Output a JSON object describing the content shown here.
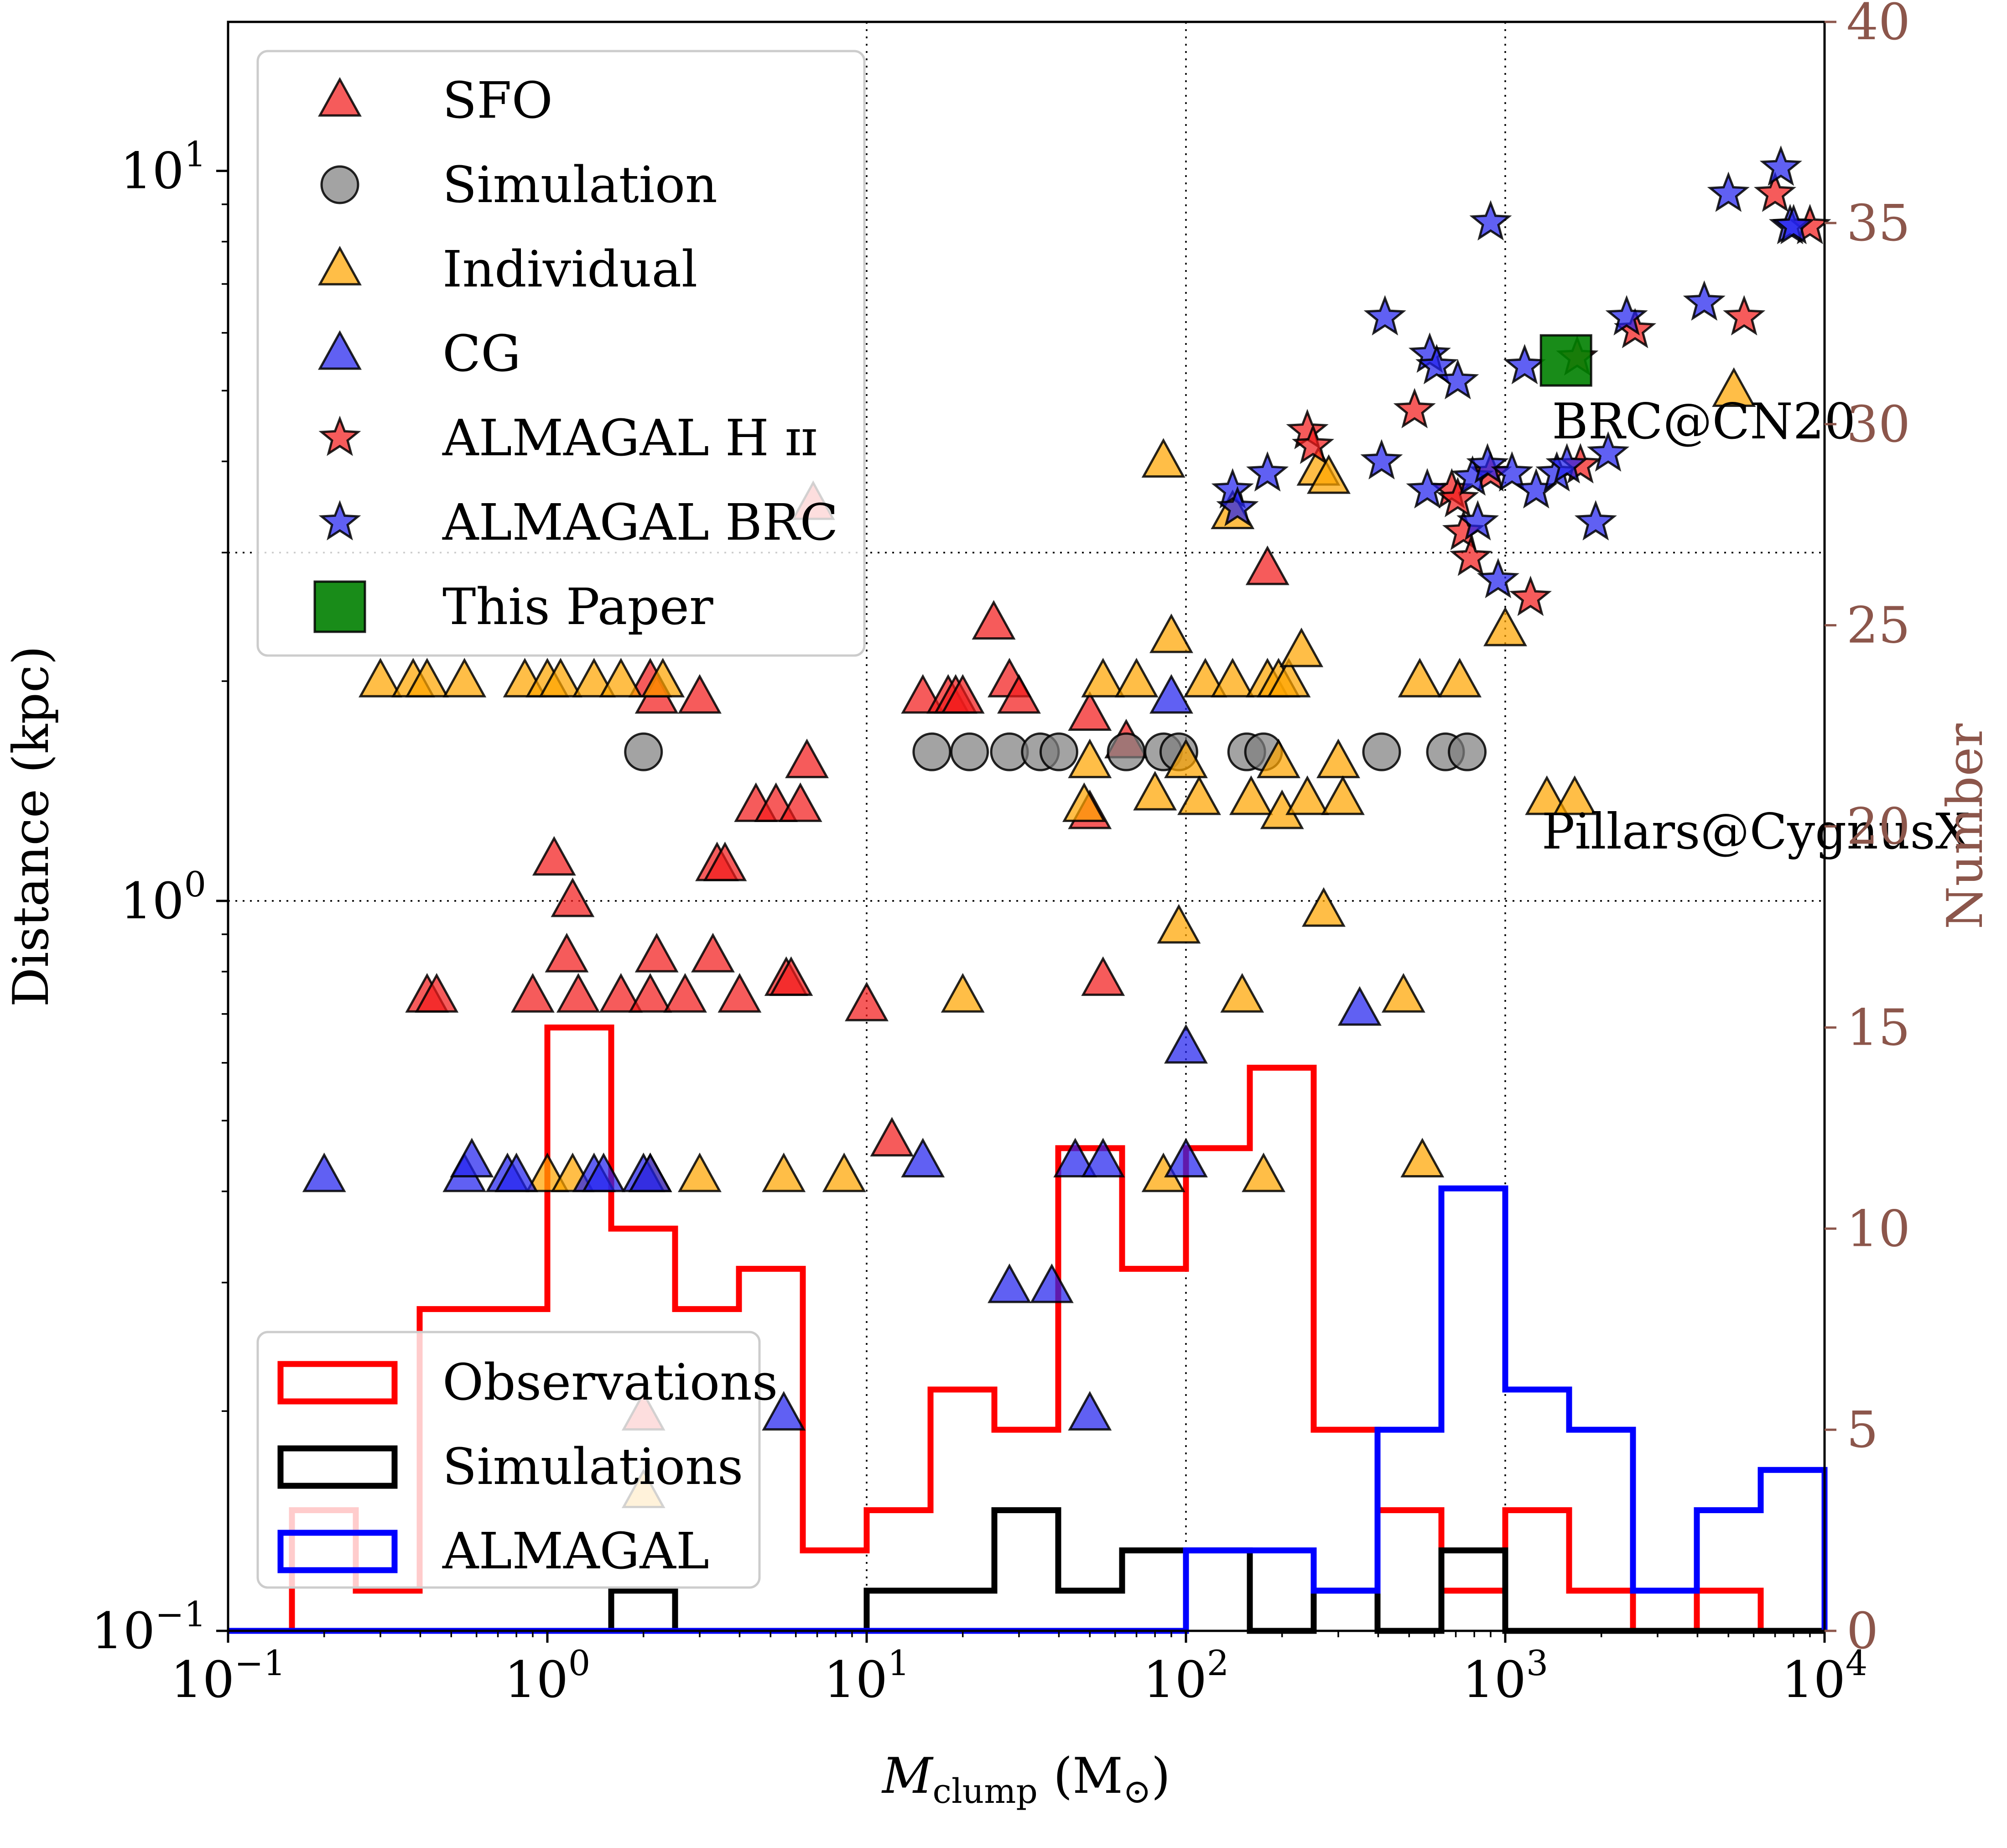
{
  "chart_data": {
    "type": "scatter",
    "title": "",
    "xlabel": {
      "main": "M",
      "sub": "clump",
      "unit": " (M",
      "unit_sym": "⊙",
      "unit_end": ")"
    },
    "ylabel": "Distance (kpc)",
    "y2label": "Number",
    "x_scale": "log",
    "y_scale": "log",
    "xlim": [
      0.1,
      10000
    ],
    "ylim": [
      0.1,
      16
    ],
    "y2lim": [
      0,
      40
    ],
    "grid": true,
    "x_ticks": [
      {
        "value": 0.1,
        "base": "10",
        "exp": "−1"
      },
      {
        "value": 1,
        "base": "10",
        "exp": "0"
      },
      {
        "value": 10,
        "base": "10",
        "exp": "1"
      },
      {
        "value": 100,
        "base": "10",
        "exp": "2"
      },
      {
        "value": 1000,
        "base": "10",
        "exp": "3"
      },
      {
        "value": 10000,
        "base": "10",
        "exp": "4"
      }
    ],
    "y_ticks": [
      {
        "value": 0.1,
        "base": "10",
        "exp": "−1"
      },
      {
        "value": 1,
        "base": "10",
        "exp": "0"
      },
      {
        "value": 10,
        "base": "10",
        "exp": "1"
      }
    ],
    "y2_ticks": [
      "0",
      "5",
      "10",
      "15",
      "20",
      "25",
      "30",
      "35",
      "40"
    ],
    "legend_scatter": [
      {
        "name": "SFO",
        "marker": "triangle",
        "color": "#f21c1c"
      },
      {
        "name": "Simulation",
        "marker": "circle",
        "color": "#808080"
      },
      {
        "name": "Individual",
        "marker": "triangle",
        "color": "#ffa500"
      },
      {
        "name": "CG",
        "marker": "triangle",
        "color": "#2222ee"
      },
      {
        "name": "ALMAGAL H ɪɪ",
        "marker": "star",
        "color": "#f21c1c"
      },
      {
        "name": "ALMAGAL BRC",
        "marker": "star",
        "color": "#2222ee"
      },
      {
        "name": "This Paper",
        "marker": "square",
        "color": "#008000"
      }
    ],
    "legend_hist": [
      {
        "name": "Observations",
        "color": "#ff0000"
      },
      {
        "name": "Simulations",
        "color": "#000000"
      },
      {
        "name": "ALMAGAL",
        "color": "#0000ff"
      }
    ],
    "annotations": [
      {
        "text": "BRC@CN20",
        "x": 1400,
        "y": 4.3
      },
      {
        "text": "Pillars@CygnusX",
        "x": 1300,
        "y": 1.18
      }
    ],
    "series": [
      {
        "name": "SFO",
        "points": [
          [
            0.42,
            0.74
          ],
          [
            0.45,
            0.74
          ],
          [
            0.9,
            0.74
          ],
          [
            1.05,
            1.14
          ],
          [
            1.15,
            0.84
          ],
          [
            1.2,
            1.0
          ],
          [
            1.25,
            0.74
          ],
          [
            1.7,
            0.74
          ],
          [
            2.1,
            0.74
          ],
          [
            2.2,
            0.84
          ],
          [
            2.7,
            0.74
          ],
          [
            3.3,
            0.84
          ],
          [
            4.0,
            0.74
          ],
          [
            3.4,
            1.12
          ],
          [
            3.6,
            1.12
          ],
          [
            4.5,
            1.35
          ],
          [
            5.2,
            1.35
          ],
          [
            6.2,
            1.35
          ],
          [
            6.5,
            1.55
          ],
          [
            5.6,
            0.78
          ],
          [
            5.8,
            0.78
          ],
          [
            2.2,
            1.9
          ],
          [
            2.1,
            2.0
          ],
          [
            3.0,
            1.9
          ],
          [
            10.0,
            0.72
          ],
          [
            12.0,
            0.47
          ],
          [
            15.0,
            1.9
          ],
          [
            18.0,
            1.9
          ],
          [
            19.0,
            1.9
          ],
          [
            20.0,
            1.9
          ],
          [
            25.0,
            2.4
          ],
          [
            28.0,
            2.0
          ],
          [
            30.0,
            1.9
          ],
          [
            50.0,
            1.8
          ],
          [
            55.0,
            0.78
          ],
          [
            50.0,
            1.32
          ],
          [
            65.0,
            1.65
          ],
          [
            180.0,
            2.85
          ],
          [
            6.8,
            3.5
          ],
          [
            2.0,
            0.198
          ]
        ]
      },
      {
        "name": "Simulation",
        "points": [
          [
            2.0,
            1.6
          ],
          [
            16.0,
            1.6
          ],
          [
            21.0,
            1.6
          ],
          [
            28.0,
            1.6
          ],
          [
            35.0,
            1.6
          ],
          [
            40.0,
            1.6
          ],
          [
            65.0,
            1.6
          ],
          [
            85.0,
            1.6
          ],
          [
            95.0,
            1.6
          ],
          [
            155.0,
            1.6
          ],
          [
            175.0,
            1.6
          ],
          [
            410.0,
            1.6
          ],
          [
            650.0,
            1.6
          ],
          [
            760.0,
            1.6
          ]
        ]
      },
      {
        "name": "Individual",
        "points": [
          [
            0.3,
            2.0
          ],
          [
            0.38,
            2.0
          ],
          [
            0.42,
            2.0
          ],
          [
            0.55,
            2.0
          ],
          [
            0.85,
            2.0
          ],
          [
            1.0,
            2.0
          ],
          [
            1.1,
            2.0
          ],
          [
            1.4,
            2.0
          ],
          [
            1.7,
            2.0
          ],
          [
            2.3,
            2.0
          ],
          [
            1.0,
            0.42
          ],
          [
            1.2,
            0.42
          ],
          [
            2.1,
            0.42
          ],
          [
            3.0,
            0.42
          ],
          [
            5.5,
            0.42
          ],
          [
            8.5,
            0.42
          ],
          [
            20.0,
            0.74
          ],
          [
            50.0,
            1.55
          ],
          [
            48.0,
            1.35
          ],
          [
            55.0,
            2.0
          ],
          [
            70.0,
            2.0
          ],
          [
            80.0,
            1.4
          ],
          [
            85.0,
            0.42
          ],
          [
            90.0,
            2.3
          ],
          [
            95.0,
            0.92
          ],
          [
            100.0,
            1.55
          ],
          [
            110.0,
            1.38
          ],
          [
            115.0,
            2.0
          ],
          [
            140.0,
            2.0
          ],
          [
            150.0,
            0.74
          ],
          [
            160.0,
            1.38
          ],
          [
            175.0,
            0.42
          ],
          [
            180.0,
            2.0
          ],
          [
            195.0,
            2.0
          ],
          [
            195.0,
            1.55
          ],
          [
            200.0,
            1.32
          ],
          [
            210.0,
            2.0
          ],
          [
            230.0,
            2.2
          ],
          [
            240.0,
            1.38
          ],
          [
            260.0,
            3.9
          ],
          [
            270.0,
            0.97
          ],
          [
            280.0,
            3.8
          ],
          [
            300.0,
            1.55
          ],
          [
            310.0,
            1.38
          ],
          [
            480.0,
            0.74
          ],
          [
            540.0,
            2.0
          ],
          [
            550.0,
            0.44
          ],
          [
            720.0,
            2.0
          ],
          [
            1000.0,
            2.35
          ],
          [
            1350.0,
            1.38
          ],
          [
            1650.0,
            1.38
          ],
          [
            5200.0,
            5.0
          ],
          [
            85.0,
            4.0
          ],
          [
            140.0,
            3.4
          ],
          [
            2.0,
            0.155
          ]
        ]
      },
      {
        "name": "CG",
        "points": [
          [
            0.2,
            0.42
          ],
          [
            0.55,
            0.42
          ],
          [
            0.58,
            0.44
          ],
          [
            0.75,
            0.42
          ],
          [
            0.8,
            0.42
          ],
          [
            1.4,
            0.42
          ],
          [
            1.5,
            0.42
          ],
          [
            2.0,
            0.42
          ],
          [
            2.1,
            0.42
          ],
          [
            15.0,
            0.44
          ],
          [
            28.0,
            0.296
          ],
          [
            38.0,
            0.296
          ],
          [
            45.0,
            0.44
          ],
          [
            55.0,
            0.44
          ],
          [
            50.0,
            0.198
          ],
          [
            5.5,
            0.198
          ],
          [
            90.0,
            1.9
          ],
          [
            100.0,
            0.63
          ],
          [
            100.0,
            0.44
          ],
          [
            350.0,
            0.71
          ]
        ]
      },
      {
        "name": "ALMAGAL H ɪɪ",
        "points": [
          [
            240.0,
            4.4
          ],
          [
            250.0,
            4.2
          ],
          [
            520.0,
            4.7
          ],
          [
            680.0,
            3.65
          ],
          [
            710.0,
            3.55
          ],
          [
            740.0,
            3.2
          ],
          [
            780.0,
            2.95
          ],
          [
            900.0,
            3.85
          ],
          [
            1200.0,
            2.6
          ],
          [
            1680.0,
            5.55
          ],
          [
            1720.0,
            3.95
          ],
          [
            2550.0,
            6.05
          ],
          [
            5600.0,
            6.3
          ],
          [
            7000.0,
            9.3
          ],
          [
            9000.0,
            8.4
          ]
        ]
      },
      {
        "name": "ALMAGAL BRC",
        "points": [
          [
            140.0,
            3.65
          ],
          [
            145.0,
            3.45
          ],
          [
            180.0,
            3.85
          ],
          [
            410.0,
            4.0
          ],
          [
            420.0,
            6.3
          ],
          [
            570.0,
            3.65
          ],
          [
            580.0,
            5.6
          ],
          [
            610.0,
            5.4
          ],
          [
            710.0,
            5.15
          ],
          [
            790.0,
            3.8
          ],
          [
            820.0,
            3.3
          ],
          [
            880.0,
            3.95
          ],
          [
            900.0,
            8.5
          ],
          [
            950.0,
            2.75
          ],
          [
            1050.0,
            3.85
          ],
          [
            1150.0,
            5.4
          ],
          [
            1250.0,
            3.65
          ],
          [
            1450.0,
            3.85
          ],
          [
            1560.0,
            3.95
          ],
          [
            1920.0,
            3.3
          ],
          [
            2100.0,
            4.1
          ],
          [
            2400.0,
            6.3
          ],
          [
            4200.0,
            6.6
          ],
          [
            5000.0,
            9.3
          ],
          [
            7300.0,
            10.1
          ],
          [
            7800.0,
            8.4
          ],
          [
            8000.0,
            8.4
          ]
        ]
      },
      {
        "name": "This Paper",
        "points": [
          [
            1550.0,
            5.5
          ]
        ]
      }
    ],
    "histograms": [
      {
        "name": "Observations",
        "edges": [
          0.1,
          0.1585,
          0.2512,
          0.3981,
          0.631,
          1.0,
          1.585,
          2.512,
          3.981,
          6.31,
          10.0,
          15.85,
          25.12,
          39.81,
          63.1,
          100.0,
          158.5,
          251.2,
          398.1,
          631.0,
          1000.0,
          1585.0,
          2512.0,
          3981.0,
          6310.0,
          10000.0
        ],
        "counts": [
          0,
          3,
          1,
          8,
          8,
          15,
          10,
          8,
          9,
          2,
          3,
          6,
          5,
          12,
          9,
          12,
          14,
          5,
          3,
          1,
          3,
          1,
          0,
          1,
          0
        ]
      },
      {
        "name": "Simulations",
        "edges": [
          0.1,
          0.1585,
          0.2512,
          0.3981,
          0.631,
          1.0,
          1.585,
          2.512,
          3.981,
          6.31,
          10.0,
          15.85,
          25.12,
          39.81,
          63.1,
          100.0,
          158.5,
          251.2,
          398.1,
          631.0,
          1000.0,
          1585.0,
          2512.0,
          3981.0,
          6310.0,
          10000.0
        ],
        "counts": [
          0,
          0,
          0,
          0,
          0,
          0,
          1,
          0,
          0,
          0,
          1,
          1,
          3,
          1,
          2,
          2,
          0,
          1,
          0,
          2,
          0,
          0,
          0,
          0,
          0
        ]
      },
      {
        "name": "ALMAGAL",
        "edges": [
          0.1,
          0.1585,
          0.2512,
          0.3981,
          0.631,
          1.0,
          1.585,
          2.512,
          3.981,
          6.31,
          10.0,
          15.85,
          25.12,
          39.81,
          63.1,
          100.0,
          158.5,
          251.2,
          398.1,
          631.0,
          1000.0,
          1585.0,
          2512.0,
          3981.0,
          6310.0,
          10000.0
        ],
        "counts": [
          0,
          0,
          0,
          0,
          0,
          0,
          0,
          0,
          0,
          0,
          0,
          0,
          0,
          0,
          0,
          2,
          2,
          1,
          5,
          11,
          6,
          5,
          1,
          3,
          4
        ]
      }
    ]
  },
  "colors": {
    "right_axis": "#8c564b",
    "grid": "#000000",
    "marker_edge": "#000000"
  }
}
